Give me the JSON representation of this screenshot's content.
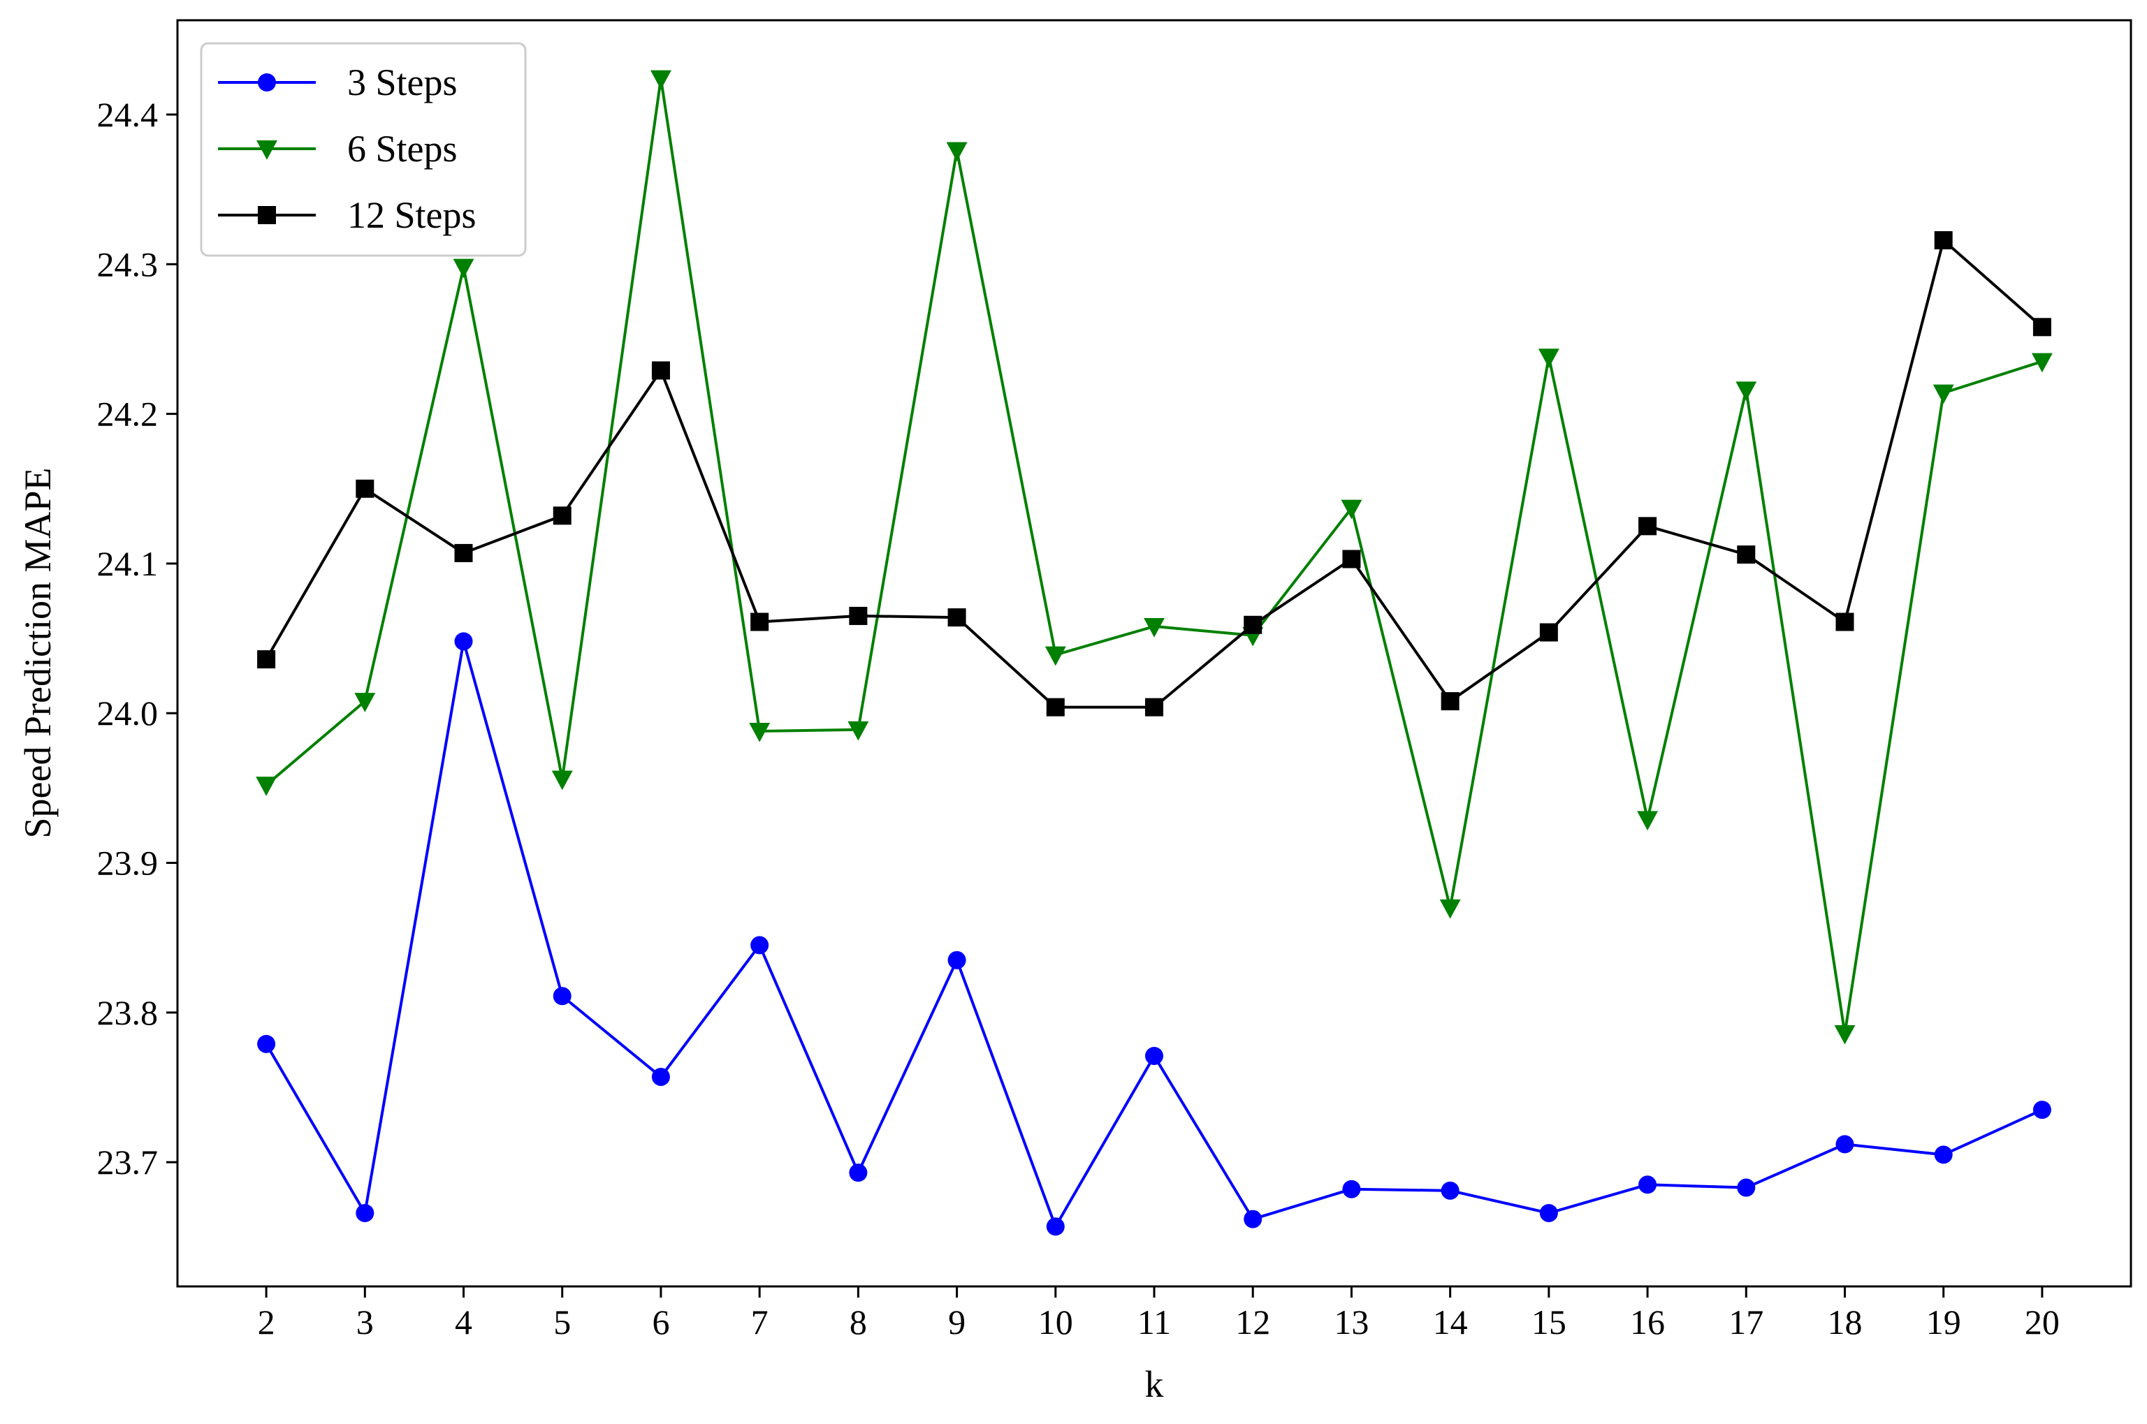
{
  "chart_data": {
    "type": "line",
    "xlabel": "k",
    "ylabel": "Speed Prediction MAPE",
    "x": [
      2,
      3,
      4,
      5,
      6,
      7,
      8,
      9,
      10,
      11,
      12,
      13,
      14,
      15,
      16,
      17,
      18,
      19,
      20
    ],
    "xlim": [
      1.1,
      20.9
    ],
    "ylim": [
      23.617,
      24.463
    ],
    "yticks": [
      23.7,
      23.8,
      23.9,
      24.0,
      24.1,
      24.2,
      24.3,
      24.4
    ],
    "grid": false,
    "legend_position": "top-left",
    "series": [
      {
        "name": "3 Steps",
        "color": "#0000ff",
        "marker": "circle",
        "values": [
          23.779,
          23.666,
          24.048,
          23.811,
          23.757,
          23.845,
          23.693,
          23.835,
          23.657,
          23.771,
          23.662,
          23.682,
          23.681,
          23.666,
          23.685,
          23.683,
          23.712,
          23.705,
          23.735
        ]
      },
      {
        "name": "6 Steps",
        "color": "#008000",
        "marker": "triangle-down",
        "values": [
          23.952,
          24.008,
          24.298,
          23.956,
          24.424,
          23.988,
          23.989,
          24.376,
          24.039,
          24.058,
          24.052,
          24.137,
          23.87,
          24.238,
          23.929,
          24.216,
          23.786,
          24.214,
          24.235
        ]
      },
      {
        "name": "12 Steps",
        "color": "#000000",
        "marker": "square",
        "values": [
          24.036,
          24.15,
          24.107,
          24.132,
          24.229,
          24.061,
          24.065,
          24.064,
          24.004,
          24.004,
          24.059,
          24.103,
          24.008,
          24.054,
          24.125,
          24.106,
          24.061,
          24.316,
          24.258
        ]
      }
    ]
  }
}
